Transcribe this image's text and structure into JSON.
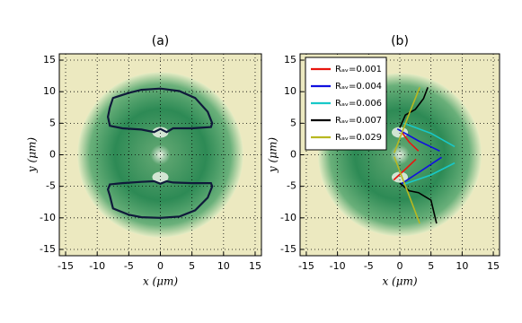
{
  "chart_data": [
    {
      "type": "line",
      "title": "(a)",
      "xlabel": "x (μm)",
      "ylabel": "y (μm)",
      "xlim": [
        -16,
        16
      ],
      "ylim": [
        -16,
        16
      ],
      "xticks": [
        -15,
        -10,
        -5,
        0,
        5,
        10,
        15
      ],
      "yticks": [
        -15,
        -10,
        -5,
        0,
        5,
        10,
        15
      ],
      "grid": true,
      "series": [
        {
          "color": "#0f1a3a",
          "x": [
            -8,
            -7.5,
            -5,
            -3,
            0,
            3,
            5.5,
            7.5,
            8.2,
            8,
            5,
            2,
            1,
            0,
            -1,
            -3,
            -6,
            -8,
            -8.3,
            -8,
            null,
            -8,
            -7.5,
            -5,
            -3,
            0,
            3,
            5.5,
            7.5,
            8.2,
            8,
            5,
            2,
            1,
            0,
            -1,
            -3,
            -6,
            -8,
            -8.3,
            -8
          ],
          "y": [
            7.5,
            9,
            9.8,
            10.3,
            10.5,
            10.1,
            9,
            6.8,
            5,
            4.4,
            4.2,
            4.2,
            3.6,
            4.1,
            3.6,
            4,
            4.2,
            4.6,
            6,
            7.5,
            null,
            -6.5,
            -8.5,
            -9.5,
            -9.9,
            -10,
            -9.8,
            -8.8,
            -6.8,
            -5,
            -4.5,
            -4.5,
            -4.4,
            -4.2,
            -4.6,
            -4.2,
            -4.3,
            -4.5,
            -4.7,
            -5.5,
            -6.5
          ]
        }
      ]
    },
    {
      "type": "line",
      "title": "(b)",
      "xlabel": "x (μm)",
      "ylabel": "y (μm)",
      "xlim": [
        -16,
        16
      ],
      "ylim": [
        -16,
        16
      ],
      "xticks": [
        -15,
        -10,
        -5,
        0,
        5,
        10,
        15
      ],
      "yticks": [
        -15,
        -10,
        -5,
        0,
        5,
        10,
        15
      ],
      "grid": true,
      "legend": "upper left",
      "series": [
        {
          "name": "Rₐᵥ=0.001",
          "color": "#e8150e",
          "x": [
            0.3,
            1.5,
            3,
            null,
            -1,
            1,
            2.6
          ],
          "y": [
            3.6,
            2,
            0.6,
            null,
            -4,
            -2.2,
            -0.7
          ]
        },
        {
          "name": "Rₐᵥ=0.004",
          "color": "#1010e0",
          "x": [
            -0.4,
            3,
            6.4,
            null,
            0.1,
            3.5,
            6.7
          ],
          "y": [
            4.1,
            2.2,
            0.6,
            null,
            -4.7,
            -2.5,
            -0.4
          ]
        },
        {
          "name": "Rₐᵥ=0.006",
          "color": "#18c8c8",
          "x": [
            0.6,
            5,
            8.8,
            null,
            0.6,
            5,
            8.8
          ],
          "y": [
            5,
            3.4,
            1.3,
            null,
            -4.7,
            -3.2,
            -1.3
          ]
        },
        {
          "name": "Rₐᵥ=0.007",
          "color": "#000000",
          "x": [
            0,
            0.9,
            2.5,
            3.8,
            4.5,
            null,
            0,
            1.5,
            3,
            5,
            5.9
          ],
          "y": [
            4.3,
            6.3,
            7.2,
            8.9,
            10.7,
            null,
            -4.5,
            -5.7,
            -6,
            -7.2,
            -10.9
          ]
        },
        {
          "name": "Rₐᵥ=0.029",
          "color": "#b8b820",
          "x": [
            3.2,
            1.5,
            -0.9,
            null,
            -0.9,
            1.5,
            3.2
          ],
          "y": [
            10.7,
            6.5,
            0.3,
            null,
            -0.3,
            -6.5,
            -10.9
          ]
        }
      ]
    }
  ]
}
